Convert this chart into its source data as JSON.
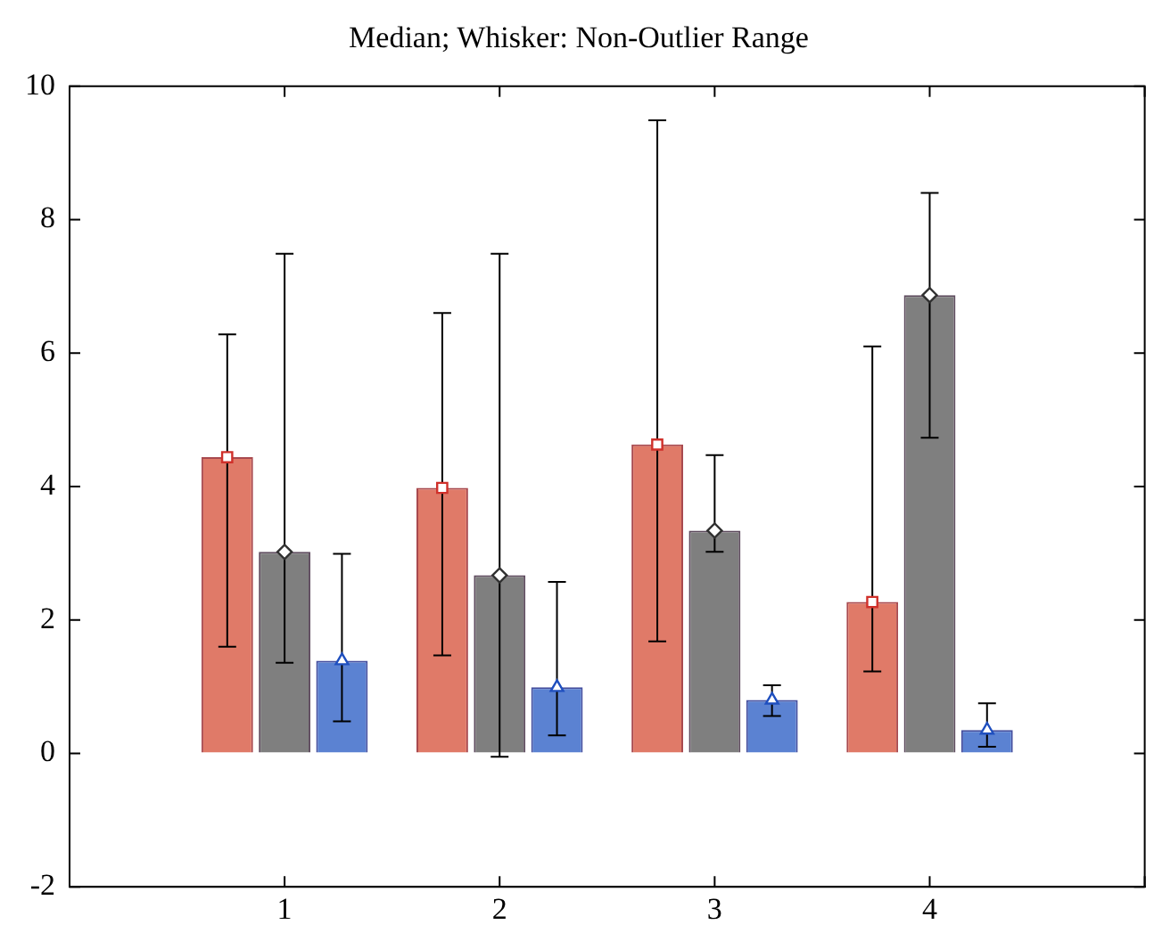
{
  "chart_data": {
    "type": "bar",
    "title": "Median; Whisker: Non-Outlier Range",
    "x": [
      1,
      2,
      3,
      4
    ],
    "xlim": [
      0,
      5
    ],
    "xticks": [
      {
        "value": 0,
        "label": null
      },
      1,
      2,
      3,
      4,
      {
        "value": 5,
        "label": null
      }
    ],
    "ylim": [
      -2,
      10
    ],
    "yticks": [
      -2,
      0,
      2,
      4,
      6,
      8,
      10
    ],
    "grid": false,
    "legend": false,
    "series": [
      {
        "color": "#e07a68",
        "values": [
          4.44,
          3.98,
          4.63,
          2.27
        ],
        "errors": [
          [
            1.6,
            6.28
          ],
          [
            1.47,
            6.6
          ],
          [
            1.68,
            9.49
          ],
          [
            1.23,
            6.1
          ]
        ]
      },
      {
        "color": "#7f7f7f",
        "values": [
          3.02,
          2.67,
          3.34,
          6.87
        ],
        "errors": [
          [
            1.36,
            7.49
          ],
          [
            -0.05,
            7.49
          ],
          [
            3.02,
            4.47
          ],
          [
            4.73,
            8.4
          ]
        ]
      },
      {
        "color": "#5b82d2",
        "values": [
          1.39,
          0.99,
          0.8,
          0.35
        ],
        "errors": [
          [
            0.48,
            2.99
          ],
          [
            0.27,
            2.57
          ],
          [
            0.56,
            1.02
          ],
          [
            0.1,
            0.75
          ]
        ]
      },
      {
        "type": "scatter",
        "marker": "square",
        "color": "#d0302a",
        "x": [
          0.733,
          1.733,
          2.733,
          3.733
        ],
        "values": [
          4.44,
          3.98,
          4.63,
          2.27
        ]
      },
      {
        "type": "scatter",
        "marker": "diamond",
        "color": "#303030",
        "x": [
          1,
          2,
          3,
          4
        ],
        "values": [
          3.02,
          2.67,
          3.34,
          6.87
        ]
      },
      {
        "type": "scatter",
        "marker": "triangle",
        "color": "#1f4fbf",
        "x": [
          1.267,
          2.267,
          3.267,
          4.267
        ],
        "values": [
          1.39,
          0.99,
          0.8,
          0.35
        ]
      }
    ]
  }
}
